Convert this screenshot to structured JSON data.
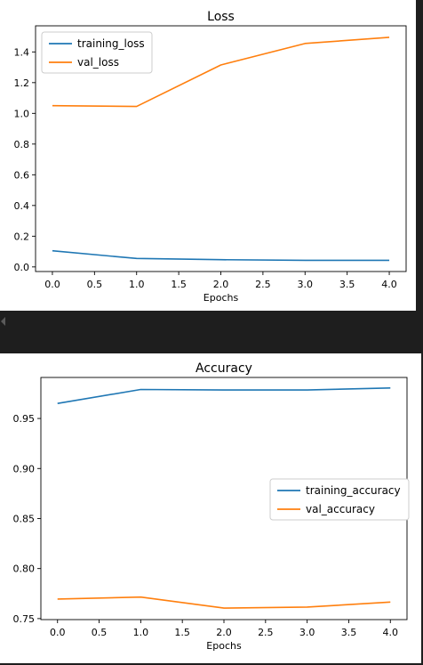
{
  "chart_data": [
    {
      "type": "line",
      "title": "Loss",
      "xlabel": "Epochs",
      "ylabel": "",
      "x": [
        0,
        1,
        2,
        3,
        4
      ],
      "xlim": [
        -0.2,
        4.2
      ],
      "ylim": [
        -0.03,
        1.57
      ],
      "xticks": [
        0.0,
        0.5,
        1.0,
        1.5,
        2.0,
        2.5,
        3.0,
        3.5,
        4.0
      ],
      "xtick_labels": [
        "0.0",
        "0.5",
        "1.0",
        "1.5",
        "2.0",
        "2.5",
        "3.0",
        "3.5",
        "4.0"
      ],
      "yticks": [
        0.0,
        0.2,
        0.4,
        0.6,
        0.8,
        1.0,
        1.2,
        1.4
      ],
      "ytick_labels": [
        "0.0",
        "0.2",
        "0.4",
        "0.6",
        "0.8",
        "1.0",
        "1.2",
        "1.4"
      ],
      "grid": false,
      "legend": "top-left",
      "series": [
        {
          "name": "training_loss",
          "color": "#1f77b4",
          "values": [
            0.105,
            0.055,
            0.047,
            0.043,
            0.043
          ]
        },
        {
          "name": "val_loss",
          "color": "#ff7f0e",
          "values": [
            1.05,
            1.045,
            1.315,
            1.455,
            1.495
          ]
        }
      ]
    },
    {
      "type": "line",
      "title": "Accuracy",
      "xlabel": "Epochs",
      "ylabel": "",
      "x": [
        0,
        1,
        2,
        3,
        4
      ],
      "xlim": [
        -0.2,
        4.2
      ],
      "ylim": [
        0.749,
        0.991
      ],
      "xticks": [
        0.0,
        0.5,
        1.0,
        1.5,
        2.0,
        2.5,
        3.0,
        3.5,
        4.0
      ],
      "xtick_labels": [
        "0.0",
        "0.5",
        "1.0",
        "1.5",
        "2.0",
        "2.5",
        "3.0",
        "3.5",
        "4.0"
      ],
      "yticks": [
        0.75,
        0.8,
        0.85,
        0.9,
        0.95
      ],
      "ytick_labels": [
        "0.75",
        "0.80",
        "0.85",
        "0.90",
        "0.95"
      ],
      "grid": false,
      "legend": "center-right",
      "series": [
        {
          "name": "training_accuracy",
          "color": "#1f77b4",
          "values": [
            0.965,
            0.979,
            0.9785,
            0.9785,
            0.9805
          ]
        },
        {
          "name": "val_accuracy",
          "color": "#ff7f0e",
          "values": [
            0.7695,
            0.7715,
            0.7605,
            0.7615,
            0.7665
          ]
        }
      ]
    }
  ]
}
